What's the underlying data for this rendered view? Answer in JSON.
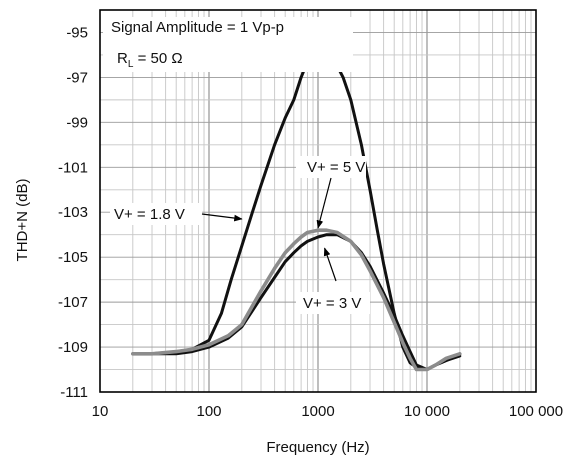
{
  "chart_data": {
    "type": "line",
    "title": "",
    "xlabel": "Frequency (Hz)",
    "ylabel": "THD+N (dB)",
    "xscale": "log",
    "xlim": [
      10,
      100000
    ],
    "ylim": [
      -111,
      -94
    ],
    "x_ticks": [
      10,
      100,
      1000,
      10000,
      100000
    ],
    "x_tick_labels": [
      "10",
      "100",
      "1000",
      "10 000",
      "100 000"
    ],
    "y_ticks": [
      -95,
      -97,
      -99,
      -101,
      -103,
      -105,
      -107,
      -109,
      -111
    ],
    "y_tick_labels": [
      "-95",
      "-97",
      "-99",
      "-101",
      "-103",
      "-105",
      "-107",
      "-109",
      "-111"
    ],
    "grid": true,
    "conditions": {
      "line1": "Signal Amplitude = 1 Vp-p",
      "line2_prefix": "R",
      "line2_sub": "L",
      "line2_suffix": " = 50 Ω"
    },
    "series": [
      {
        "name": "V+ = 1.8 V",
        "color": "#111111",
        "points": [
          [
            20,
            -109.3
          ],
          [
            30,
            -109.3
          ],
          [
            50,
            -109.2
          ],
          [
            70,
            -109.1
          ],
          [
            100,
            -108.7
          ],
          [
            130,
            -107.5
          ],
          [
            160,
            -106.0
          ],
          [
            200,
            -104.5
          ],
          [
            250,
            -103.0
          ],
          [
            300,
            -101.8
          ],
          [
            400,
            -100.0
          ],
          [
            500,
            -98.8
          ],
          [
            600,
            -98.0
          ],
          [
            700,
            -97.0
          ],
          [
            800,
            -96.3
          ],
          [
            900,
            -95.9
          ],
          [
            1000,
            -95.7
          ],
          [
            1100,
            -95.65
          ],
          [
            1200,
            -95.75
          ],
          [
            1400,
            -96.2
          ],
          [
            1700,
            -97.0
          ],
          [
            2000,
            -98.0
          ],
          [
            2500,
            -100.0
          ],
          [
            3000,
            -102.0
          ],
          [
            3500,
            -103.8
          ],
          [
            4000,
            -105.3
          ],
          [
            5000,
            -107.5
          ],
          [
            6000,
            -109.0
          ],
          [
            7000,
            -109.7
          ],
          [
            8000,
            -109.9
          ],
          [
            10000,
            -110.0
          ],
          [
            12000,
            -109.8
          ],
          [
            15000,
            -109.6
          ],
          [
            18000,
            -109.4
          ],
          [
            20000,
            -109.3
          ]
        ]
      },
      {
        "name": "V+ = 5 V",
        "color": "#8c8c8c",
        "points": [
          [
            20,
            -109.3
          ],
          [
            30,
            -109.3
          ],
          [
            50,
            -109.2
          ],
          [
            70,
            -109.1
          ],
          [
            100,
            -108.9
          ],
          [
            150,
            -108.5
          ],
          [
            200,
            -108.0
          ],
          [
            300,
            -106.5
          ],
          [
            400,
            -105.5
          ],
          [
            500,
            -104.8
          ],
          [
            600,
            -104.4
          ],
          [
            700,
            -104.1
          ],
          [
            800,
            -103.9
          ],
          [
            1000,
            -103.8
          ],
          [
            1200,
            -103.8
          ],
          [
            1500,
            -103.9
          ],
          [
            2000,
            -104.3
          ],
          [
            2500,
            -104.9
          ],
          [
            3000,
            -105.6
          ],
          [
            4000,
            -106.8
          ],
          [
            5000,
            -107.9
          ],
          [
            6000,
            -108.8
          ],
          [
            7000,
            -109.5
          ],
          [
            8000,
            -110.0
          ],
          [
            10000,
            -110.0
          ],
          [
            12000,
            -109.8
          ],
          [
            15000,
            -109.5
          ],
          [
            20000,
            -109.3
          ]
        ]
      },
      {
        "name": "V+ = 3 V",
        "color": "#111111",
        "points": [
          [
            20,
            -109.3
          ],
          [
            30,
            -109.3
          ],
          [
            50,
            -109.3
          ],
          [
            70,
            -109.2
          ],
          [
            100,
            -109.0
          ],
          [
            150,
            -108.6
          ],
          [
            200,
            -108.1
          ],
          [
            300,
            -106.8
          ],
          [
            400,
            -105.9
          ],
          [
            500,
            -105.2
          ],
          [
            600,
            -104.8
          ],
          [
            700,
            -104.5
          ],
          [
            800,
            -104.3
          ],
          [
            1000,
            -104.1
          ],
          [
            1200,
            -104.0
          ],
          [
            1500,
            -104.0
          ],
          [
            2000,
            -104.3
          ],
          [
            2500,
            -104.8
          ],
          [
            3000,
            -105.4
          ],
          [
            4000,
            -106.6
          ],
          [
            5000,
            -107.6
          ],
          [
            6000,
            -108.5
          ],
          [
            7000,
            -109.2
          ],
          [
            8000,
            -109.8
          ],
          [
            10000,
            -110.0
          ],
          [
            12000,
            -109.8
          ],
          [
            15000,
            -109.6
          ],
          [
            20000,
            -109.4
          ]
        ]
      }
    ],
    "annotations": [
      {
        "series": "V+ = 1.8 V",
        "text": "V+ = 1.8 V",
        "at": [
          200,
          -103.3
        ]
      },
      {
        "series": "V+ = 5 V",
        "text": "V+ = 5 V",
        "at": [
          1000,
          -103.7
        ]
      },
      {
        "series": "V+ = 3 V",
        "text": "V+ = 3 V",
        "at": [
          1150,
          -104.3
        ]
      }
    ]
  }
}
